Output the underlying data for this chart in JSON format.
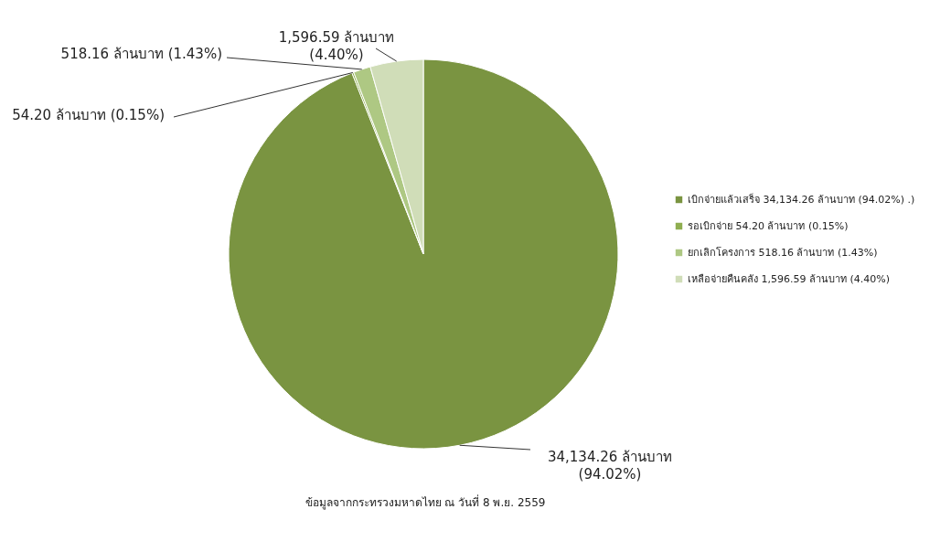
{
  "chart_data": {
    "type": "pie",
    "categories": [
      "เบิกจ่ายแล้วเสร็จ 34,134.26 ล้านบาท (94.02%) .)",
      "รอเบิกจ่าย 54.20 ล้านบาท (0.15%)",
      "ยกเลิกโครงการ 518.16 ล้านบาท (1.43%)",
      "เหลือจ่ายคืนคลัง 1,596.59 ล้านบาท (4.40%)"
    ],
    "values": [
      34134.26,
      54.2,
      518.16,
      1596.59
    ],
    "colors": [
      "#7a9441",
      "#8fae50",
      "#aec883",
      "#d0ddb8"
    ],
    "value_labels": [
      "34,134.26 ล้านบาท\n(94.02%)",
      "54.20 ล้านบาท (0.15%)",
      "518.16 ล้านบาท (1.43%)",
      "1,596.59 ล้านบาท\n(4.40%)"
    ],
    "legend": "right",
    "annotations": [
      "ข้อมูลจากกระทรวงมหาดไทย ณ วันที่ 8 พ.ย. 2559"
    ]
  }
}
